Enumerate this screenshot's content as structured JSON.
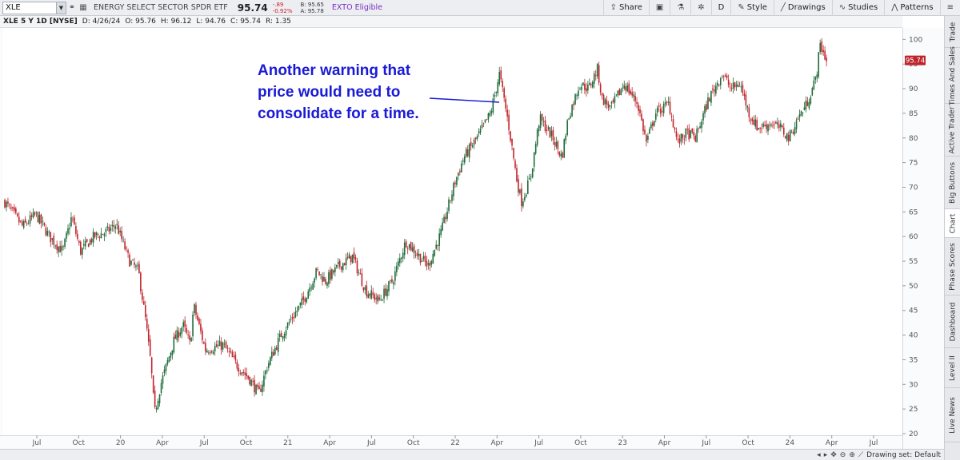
{
  "toolbar": {
    "symbol": "XLE",
    "etf_name": "ENERGY SELECT SECTOR SPDR ETF",
    "last_price": "95.74",
    "change": "-.89",
    "change_pct": "-0.92%",
    "bid": "B: 95.65",
    "ask": "A: 95.78",
    "exto": "EXTO Eligible",
    "share_label": "Share",
    "period_label": "D",
    "style_label": "Style",
    "drawings_label": "Drawings",
    "studies_label": "Studies",
    "patterns_label": "Patterns",
    "accent_color": "#7b2fbf",
    "down_color": "#d02020"
  },
  "infobar": {
    "title": "XLE 5 Y 1D [NYSE]",
    "date": "D: 4/26/24",
    "open": "O: 95.76",
    "high": "H: 96.12",
    "low": "L: 94.76",
    "close": "C: 95.74",
    "range": "R: 1.35"
  },
  "right_tabs": [
    "Trade",
    "Times And Sales",
    "Active Trader",
    "Big Buttons",
    "Chart",
    "Phase Scores",
    "Dashboard",
    "Level II",
    "Live News"
  ],
  "bottom": {
    "drawing_set": "Drawing set: Default"
  },
  "chart_data": {
    "type": "candlestick",
    "title": "",
    "xlabel": "",
    "ylabel": "",
    "ylim": [
      20,
      102
    ],
    "y_ticks": [
      20,
      25,
      30,
      35,
      40,
      45,
      50,
      55,
      60,
      65,
      70,
      75,
      80,
      85,
      90,
      95,
      100
    ],
    "x_ticks": [
      "Jul",
      "Oct",
      "20",
      "Apr",
      "Jul",
      "Oct",
      "21",
      "Apr",
      "Jul",
      "Oct",
      "22",
      "Apr",
      "Jul",
      "Oct",
      "23",
      "Apr",
      "Jul",
      "Oct",
      "24",
      "Apr",
      "Jul"
    ],
    "last_price_label": "95.74",
    "annotation": [
      "Another warning that",
      "price would need to",
      "consolidate for a time."
    ],
    "up_color": "#1f6b3a",
    "down_color": "#c0242c",
    "price_path": [
      [
        0,
        67
      ],
      [
        0.02,
        62
      ],
      [
        0.035,
        64.5
      ],
      [
        0.05,
        60
      ],
      [
        0.065,
        57
      ],
      [
        0.075,
        64
      ],
      [
        0.085,
        57
      ],
      [
        0.1,
        60
      ],
      [
        0.115,
        61
      ],
      [
        0.125,
        62.5
      ],
      [
        0.14,
        55
      ],
      [
        0.15,
        53
      ],
      [
        0.158,
        43
      ],
      [
        0.164,
        34
      ],
      [
        0.168,
        24
      ],
      [
        0.175,
        30
      ],
      [
        0.19,
        39
      ],
      [
        0.2,
        42
      ],
      [
        0.208,
        38
      ],
      [
        0.212,
        46
      ],
      [
        0.225,
        37
      ],
      [
        0.245,
        38
      ],
      [
        0.26,
        34
      ],
      [
        0.275,
        31
      ],
      [
        0.285,
        28
      ],
      [
        0.295,
        34
      ],
      [
        0.31,
        40
      ],
      [
        0.335,
        47
      ],
      [
        0.35,
        53
      ],
      [
        0.36,
        51
      ],
      [
        0.375,
        54
      ],
      [
        0.39,
        56
      ],
      [
        0.405,
        49
      ],
      [
        0.42,
        47
      ],
      [
        0.435,
        51
      ],
      [
        0.45,
        59
      ],
      [
        0.46,
        57
      ],
      [
        0.475,
        54
      ],
      [
        0.49,
        61
      ],
      [
        0.505,
        71
      ],
      [
        0.515,
        76
      ],
      [
        0.53,
        80
      ],
      [
        0.545,
        85
      ],
      [
        0.555,
        93
      ],
      [
        0.565,
        83
      ],
      [
        0.575,
        71
      ],
      [
        0.58,
        67
      ],
      [
        0.59,
        72
      ],
      [
        0.6,
        84
      ],
      [
        0.615,
        80
      ],
      [
        0.625,
        76
      ],
      [
        0.632,
        84
      ],
      [
        0.645,
        91
      ],
      [
        0.655,
        90
      ],
      [
        0.665,
        94
      ],
      [
        0.67,
        88
      ],
      [
        0.68,
        86
      ],
      [
        0.695,
        91
      ],
      [
        0.71,
        87
      ],
      [
        0.72,
        79
      ],
      [
        0.73,
        85
      ],
      [
        0.745,
        87
      ],
      [
        0.755,
        79
      ],
      [
        0.765,
        81
      ],
      [
        0.775,
        80
      ],
      [
        0.79,
        88
      ],
      [
        0.805,
        93
      ],
      [
        0.815,
        90
      ],
      [
        0.825,
        91
      ],
      [
        0.835,
        85
      ],
      [
        0.845,
        82
      ],
      [
        0.86,
        83
      ],
      [
        0.87,
        82
      ],
      [
        0.88,
        80
      ],
      [
        0.89,
        84
      ],
      [
        0.9,
        87
      ],
      [
        0.91,
        92
      ],
      [
        0.915,
        99
      ],
      [
        0.922,
        95.74
      ]
    ]
  }
}
